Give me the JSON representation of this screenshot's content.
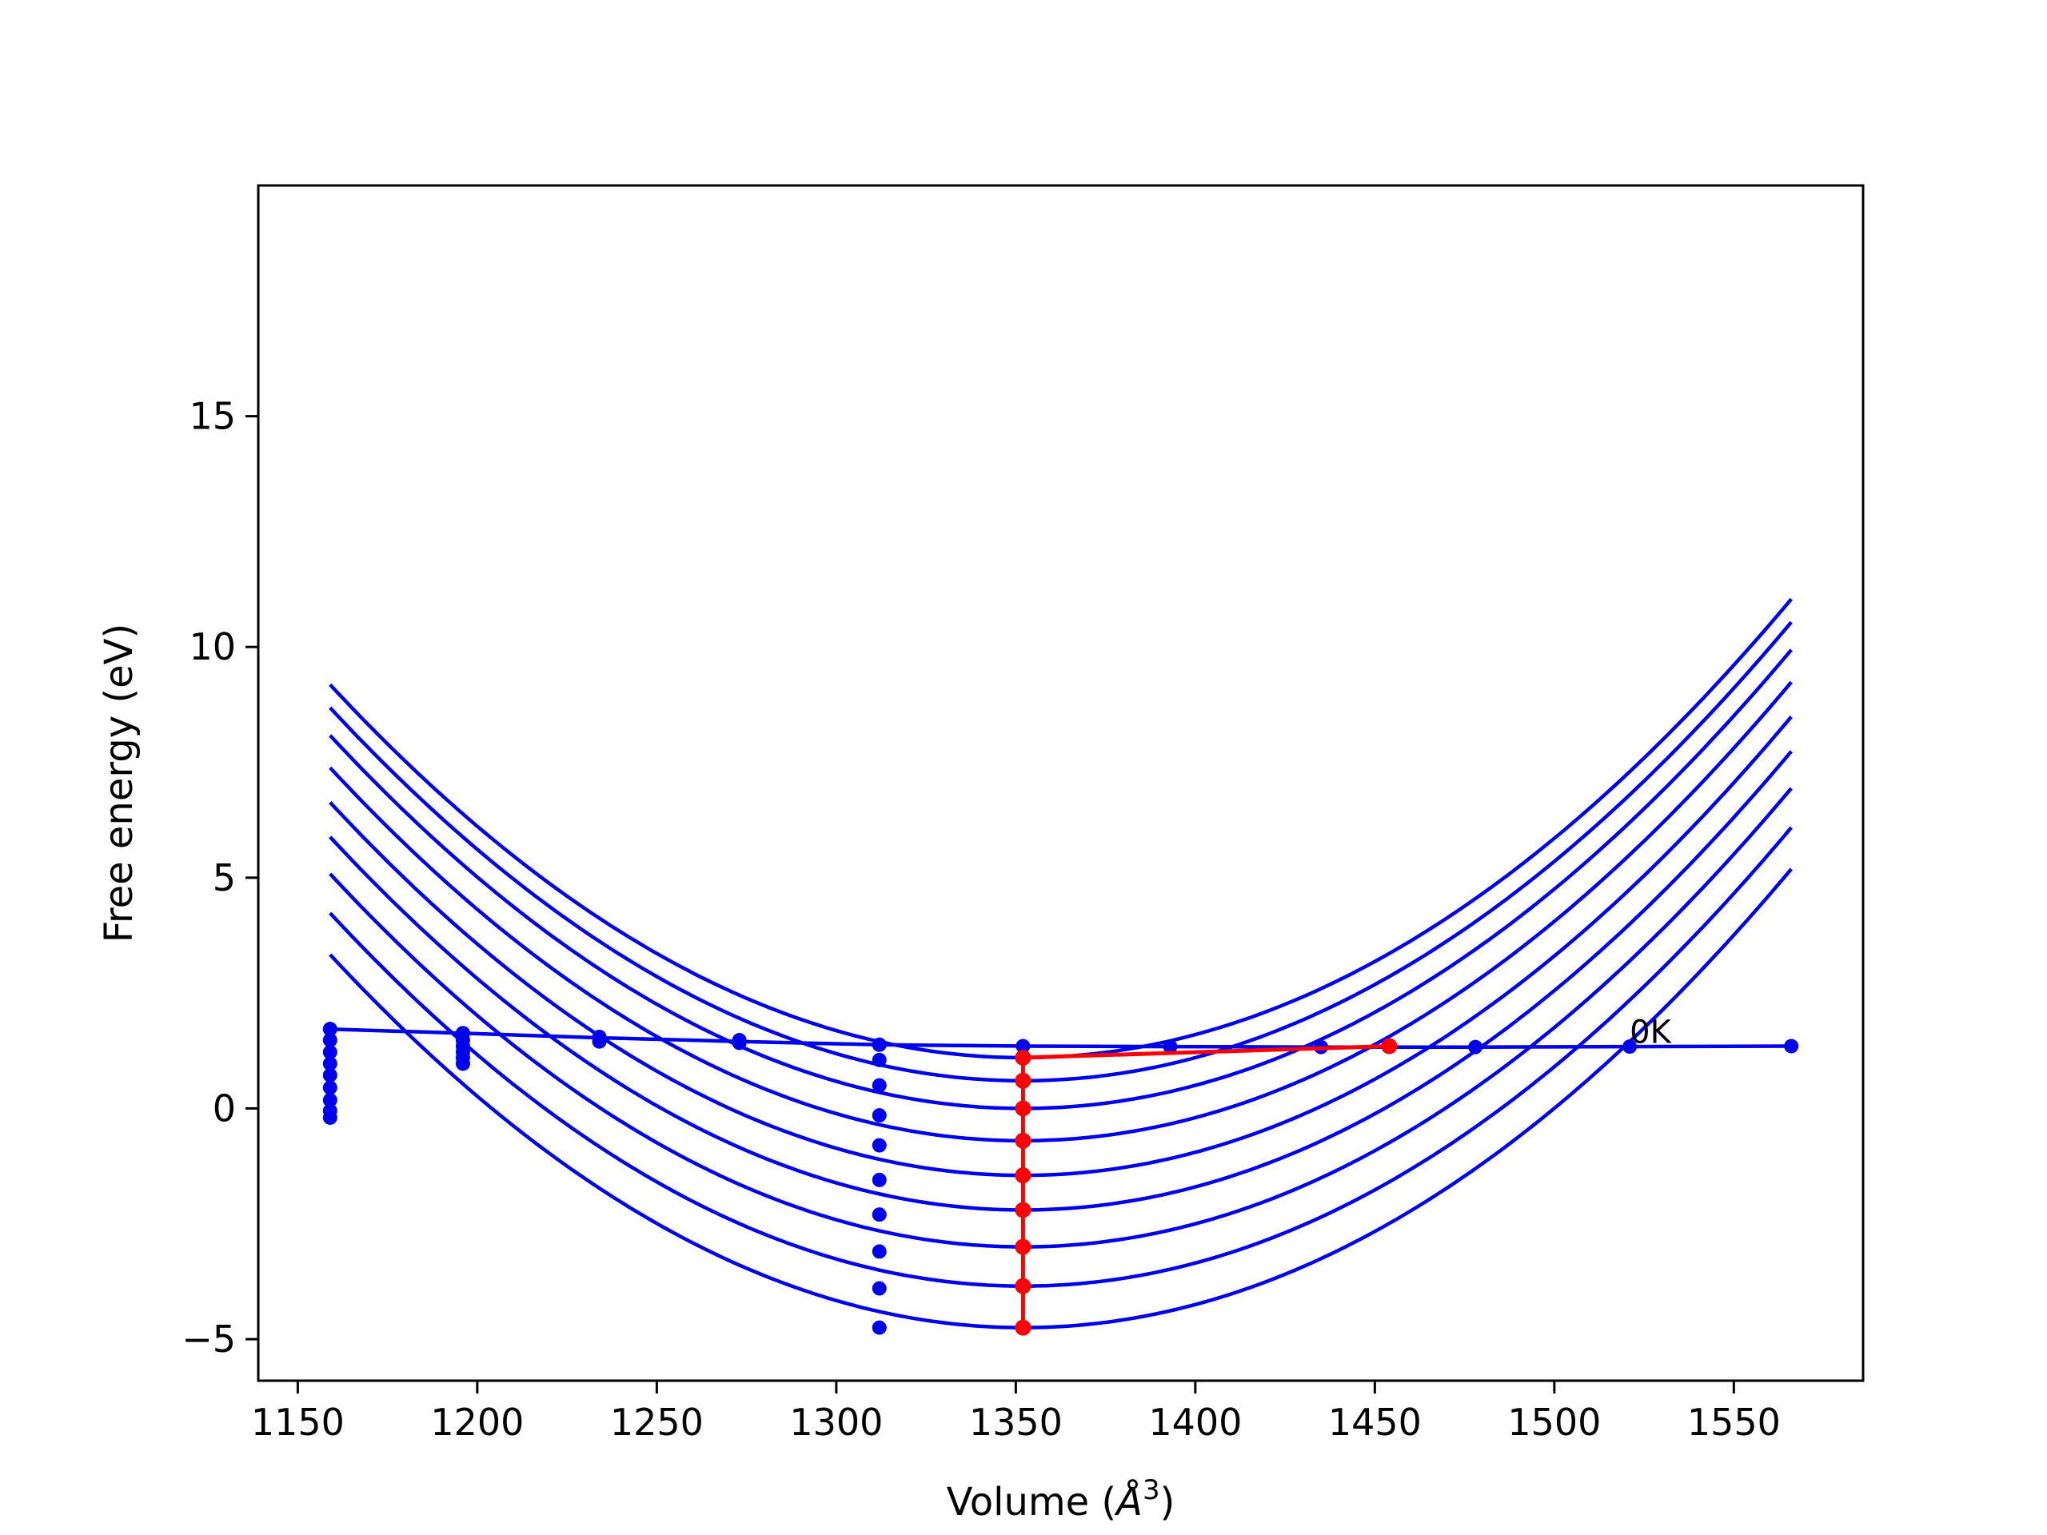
{
  "chart_data": {
    "type": "line",
    "title": "",
    "xlabel": "Volume (",
    "xlabel_symbol": "Å",
    "xlabel_exp": "3",
    "xlabel_end": ")",
    "ylabel": "Free energy (eV)",
    "xlim": [
      1139,
      1586
    ],
    "ylim": [
      -5.9,
      20.0
    ],
    "xticks": [
      1150,
      1200,
      1250,
      1300,
      1350,
      1400,
      1450,
      1500,
      1550
    ],
    "xtick_labels": [
      "1150",
      "1200",
      "1250",
      "1300",
      "1350",
      "1400",
      "1450",
      "1500",
      "1550"
    ],
    "yticks": [
      -5,
      0,
      5,
      10,
      15
    ],
    "ytick_labels": [
      "−5",
      "0",
      "5",
      "10",
      "15"
    ],
    "grid": false,
    "legend": "none",
    "annotation": {
      "text": "0K",
      "x": 1521,
      "y": 1.35
    },
    "colors": {
      "curves": "#0000ee",
      "path": "#ff0000",
      "axis": "#000000"
    },
    "curve_x_range": [
      1159,
      1566
    ],
    "curves": [
      {
        "a": 0.000217,
        "v0": 1352,
        "fmin": 1.1
      },
      {
        "a": 0.000217,
        "v0": 1352,
        "fmin": 0.6
      },
      {
        "a": 0.000217,
        "v0": 1352,
        "fmin": 0.0
      },
      {
        "a": 0.000217,
        "v0": 1352,
        "fmin": -0.7
      },
      {
        "a": 0.000217,
        "v0": 1352,
        "fmin": -1.45
      },
      {
        "a": 0.000217,
        "v0": 1352,
        "fmin": -2.2
      },
      {
        "a": 0.000217,
        "v0": 1352,
        "fmin": -3.0
      },
      {
        "a": 0.000217,
        "v0": 1352,
        "fmin": -3.85
      },
      {
        "a": 0.000217,
        "v0": 1352,
        "fmin": -4.75
      }
    ],
    "baseline": {
      "x": [
        1159,
        1196,
        1234,
        1273,
        1312,
        1352,
        1393,
        1435,
        1478,
        1521,
        1566
      ],
      "y": [
        1.72,
        1.63,
        1.53,
        1.45,
        1.38,
        1.35,
        1.34,
        1.33,
        1.33,
        1.34,
        1.35
      ]
    },
    "scatter_columns": [
      {
        "x": 1159,
        "y": [
          1.72,
          1.48,
          1.22,
          0.97,
          0.72,
          0.45,
          0.18,
          -0.05,
          -0.2
        ]
      },
      {
        "x": 1196,
        "y": [
          1.63,
          1.48,
          1.35,
          1.22,
          1.1,
          0.97
        ]
      },
      {
        "x": 1234,
        "y": [
          1.55,
          1.45
        ]
      },
      {
        "x": 1273,
        "y": [
          1.48,
          1.42
        ]
      },
      {
        "x": 1312,
        "y": [
          1.38,
          1.05,
          0.5,
          -0.15,
          -0.8,
          -1.55,
          -2.3,
          -3.1,
          -3.9,
          -4.75
        ]
      }
    ],
    "red_path": {
      "x": [
        1352,
        1352,
        1352,
        1352,
        1352,
        1352,
        1352,
        1352,
        1352,
        1454
      ],
      "y": [
        -4.75,
        -3.85,
        -3.0,
        -2.2,
        -1.45,
        -0.7,
        0.0,
        0.6,
        1.1,
        1.35
      ]
    }
  }
}
